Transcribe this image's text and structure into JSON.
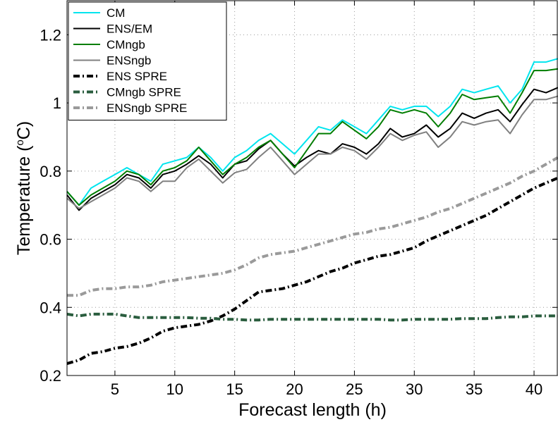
{
  "chart_data": {
    "type": "line",
    "title": "",
    "xlabel": "Forecast length (h)",
    "ylabel_text": "Temperature (",
    "ylabel_sup": "o",
    "ylabel_unit": "C)",
    "xlim": [
      1,
      42
    ],
    "ylim": [
      0.2,
      1.3
    ],
    "xticks": [
      5,
      10,
      15,
      20,
      25,
      30,
      35,
      40
    ],
    "yticks": [
      0.2,
      0.4,
      0.6,
      0.8,
      1.0,
      1.2
    ],
    "ytick_labels": [
      "0.2",
      "0.4",
      "0.6",
      "0.8",
      "1",
      "1.2"
    ],
    "grid": true,
    "legend_position": "top-left",
    "x": [
      1,
      2,
      3,
      4,
      5,
      6,
      7,
      8,
      9,
      10,
      11,
      12,
      13,
      14,
      15,
      16,
      17,
      18,
      19,
      20,
      21,
      22,
      23,
      24,
      25,
      26,
      27,
      28,
      29,
      30,
      31,
      32,
      33,
      34,
      35,
      36,
      37,
      38,
      39,
      40,
      41,
      42
    ],
    "series": [
      {
        "name": "CM",
        "color": "#00e5ee",
        "dash": "solid",
        "width": 2,
        "values": [
          0.74,
          0.7,
          0.75,
          0.77,
          0.79,
          0.81,
          0.79,
          0.77,
          0.82,
          0.83,
          0.84,
          0.87,
          0.84,
          0.8,
          0.84,
          0.86,
          0.89,
          0.91,
          0.88,
          0.85,
          0.89,
          0.93,
          0.92,
          0.95,
          0.93,
          0.91,
          0.95,
          0.99,
          0.98,
          0.99,
          0.99,
          0.96,
          0.99,
          1.04,
          1.03,
          1.04,
          1.05,
          1.0,
          1.04,
          1.12,
          1.12,
          1.13
        ]
      },
      {
        "name": "ENS/EM",
        "color": "#000000",
        "dash": "solid",
        "width": 2,
        "values": [
          0.73,
          0.685,
          0.72,
          0.74,
          0.76,
          0.79,
          0.78,
          0.75,
          0.79,
          0.8,
          0.82,
          0.845,
          0.82,
          0.78,
          0.82,
          0.83,
          0.865,
          0.89,
          0.85,
          0.815,
          0.84,
          0.86,
          0.85,
          0.88,
          0.87,
          0.85,
          0.88,
          0.925,
          0.9,
          0.91,
          0.935,
          0.9,
          0.925,
          0.97,
          0.955,
          0.97,
          0.98,
          0.945,
          0.995,
          1.04,
          1.03,
          1.045
        ]
      },
      {
        "name": "CMngb",
        "color": "#007d00",
        "dash": "solid",
        "width": 2,
        "values": [
          0.74,
          0.7,
          0.73,
          0.75,
          0.77,
          0.8,
          0.79,
          0.76,
          0.8,
          0.81,
          0.83,
          0.87,
          0.83,
          0.79,
          0.82,
          0.84,
          0.87,
          0.89,
          0.85,
          0.81,
          0.86,
          0.91,
          0.91,
          0.945,
          0.92,
          0.895,
          0.93,
          0.98,
          0.97,
          0.98,
          0.97,
          0.93,
          0.97,
          1.025,
          1.01,
          1.015,
          1.02,
          0.97,
          1.03,
          1.095,
          1.095,
          1.1
        ]
      },
      {
        "name": "ENSngb",
        "color": "#808080",
        "dash": "solid",
        "width": 2,
        "values": [
          0.72,
          0.69,
          0.71,
          0.73,
          0.75,
          0.78,
          0.77,
          0.74,
          0.77,
          0.77,
          0.81,
          0.835,
          0.8,
          0.765,
          0.795,
          0.805,
          0.84,
          0.87,
          0.83,
          0.79,
          0.82,
          0.85,
          0.85,
          0.87,
          0.86,
          0.835,
          0.87,
          0.91,
          0.89,
          0.905,
          0.915,
          0.87,
          0.9,
          0.945,
          0.935,
          0.945,
          0.95,
          0.91,
          0.965,
          1.01,
          1.01,
          1.02
        ]
      },
      {
        "name": "ENS SPRE",
        "color": "#000000",
        "dash": "9,4,2,4",
        "width": 4,
        "values": [
          0.235,
          0.245,
          0.265,
          0.27,
          0.28,
          0.285,
          0.295,
          0.31,
          0.33,
          0.34,
          0.345,
          0.35,
          0.36,
          0.375,
          0.395,
          0.42,
          0.445,
          0.45,
          0.455,
          0.465,
          0.475,
          0.49,
          0.505,
          0.515,
          0.53,
          0.54,
          0.55,
          0.555,
          0.565,
          0.575,
          0.595,
          0.61,
          0.625,
          0.64,
          0.655,
          0.67,
          0.69,
          0.71,
          0.73,
          0.75,
          0.765,
          0.78
        ]
      },
      {
        "name": "CMngb SPRE",
        "color": "#2a5d3e",
        "dash": "9,4,2,4",
        "width": 4,
        "values": [
          0.38,
          0.375,
          0.38,
          0.38,
          0.38,
          0.375,
          0.37,
          0.37,
          0.37,
          0.37,
          0.37,
          0.368,
          0.368,
          0.365,
          0.365,
          0.363,
          0.363,
          0.365,
          0.365,
          0.365,
          0.365,
          0.365,
          0.365,
          0.365,
          0.365,
          0.365,
          0.365,
          0.363,
          0.363,
          0.365,
          0.365,
          0.365,
          0.365,
          0.367,
          0.367,
          0.367,
          0.37,
          0.372,
          0.372,
          0.375,
          0.375,
          0.375
        ]
      },
      {
        "name": "ENSngb SPRE",
        "color": "#9a9a9a",
        "dash": "9,4,2,4",
        "width": 4,
        "values": [
          0.435,
          0.435,
          0.45,
          0.455,
          0.455,
          0.46,
          0.46,
          0.465,
          0.475,
          0.48,
          0.485,
          0.49,
          0.495,
          0.5,
          0.51,
          0.525,
          0.545,
          0.555,
          0.56,
          0.565,
          0.575,
          0.585,
          0.595,
          0.605,
          0.615,
          0.62,
          0.63,
          0.635,
          0.645,
          0.655,
          0.665,
          0.68,
          0.69,
          0.705,
          0.72,
          0.735,
          0.75,
          0.765,
          0.785,
          0.8,
          0.82,
          0.84
        ]
      }
    ]
  }
}
